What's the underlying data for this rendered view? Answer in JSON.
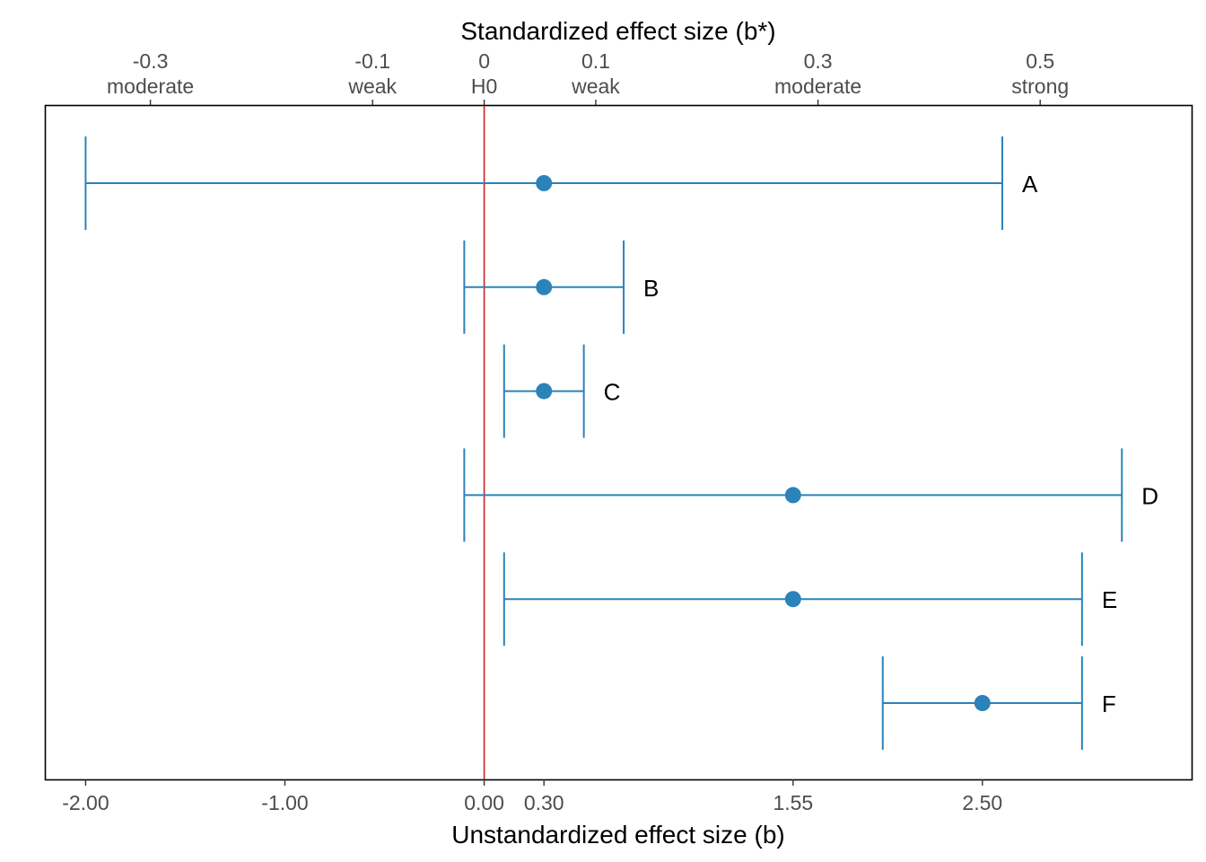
{
  "chart_data": {
    "type": "scatter",
    "title": "",
    "xlabel": "Unstandardized effect size (b)",
    "xlabel_top": "Standardized effect size (b*)",
    "ylabel": "",
    "xlim": [
      -2.2,
      3.55
    ],
    "x_ticks_bottom": [
      {
        "value": -2.0,
        "label": "-2.00"
      },
      {
        "value": -1.0,
        "label": "-1.00"
      },
      {
        "value": 0.0,
        "label": "0.00"
      },
      {
        "value": 0.3,
        "label": "0.30"
      },
      {
        "value": 1.55,
        "label": "1.55"
      },
      {
        "value": 2.5,
        "label": "2.50"
      }
    ],
    "x_ticks_top": [
      {
        "value": -1.675,
        "label": "-0.3",
        "sublabel": "moderate"
      },
      {
        "value": -0.56,
        "label": "-0.1",
        "sublabel": "weak"
      },
      {
        "value": 0.0,
        "label": "0",
        "sublabel": "H0"
      },
      {
        "value": 0.56,
        "label": "0.1",
        "sublabel": "weak"
      },
      {
        "value": 1.675,
        "label": "0.3",
        "sublabel": "moderate"
      },
      {
        "value": 2.79,
        "label": "0.5",
        "sublabel": "strong"
      }
    ],
    "reference_line": {
      "value": 0.0,
      "color": "#cc2222"
    },
    "series": [
      {
        "color": "#2b83ba",
        "points": [
          {
            "label": "A",
            "estimate": 0.3,
            "lower": -2.0,
            "upper": 2.6
          },
          {
            "label": "B",
            "estimate": 0.3,
            "lower": -0.1,
            "upper": 0.7
          },
          {
            "label": "C",
            "estimate": 0.3,
            "lower": 0.1,
            "upper": 0.5
          },
          {
            "label": "D",
            "estimate": 1.55,
            "lower": -0.1,
            "upper": 3.2
          },
          {
            "label": "E",
            "estimate": 1.55,
            "lower": 0.1,
            "upper": 3.0
          },
          {
            "label": "F",
            "estimate": 2.5,
            "lower": 2.0,
            "upper": 3.0
          }
        ]
      }
    ],
    "grid": false,
    "legend": "none"
  }
}
